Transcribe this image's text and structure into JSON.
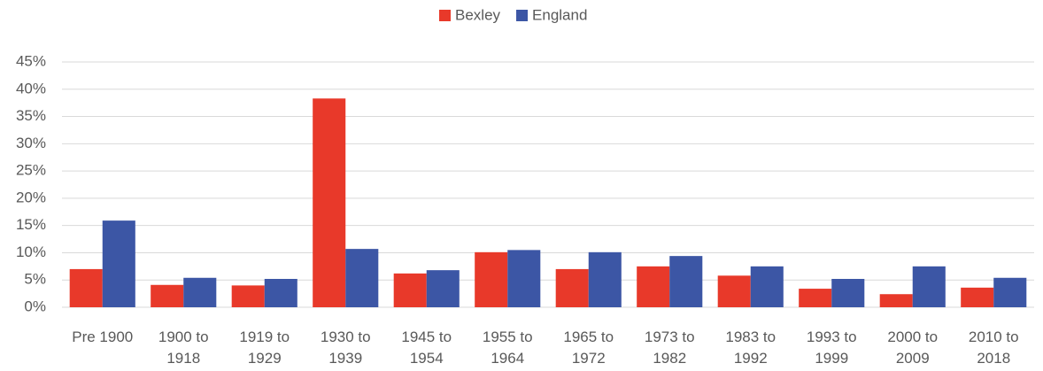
{
  "chart_data": {
    "type": "bar",
    "categories": [
      "Pre 1900",
      "1900 to 1918",
      "1919 to 1929",
      "1930 to 1939",
      "1945 to 1954",
      "1955 to 1964",
      "1965 to 1972",
      "1973 to 1982",
      "1983 to 1992",
      "1993 to 1999",
      "2000 to 2009",
      "2010 to 2018"
    ],
    "series": [
      {
        "name": "Bexley",
        "color": "#e8392a",
        "values": [
          7.0,
          4.1,
          4.0,
          38.3,
          6.2,
          10.1,
          7.0,
          7.5,
          5.8,
          3.4,
          2.4,
          3.6
        ]
      },
      {
        "name": "England",
        "color": "#3c56a5",
        "values": [
          15.9,
          5.4,
          5.2,
          10.7,
          6.8,
          10.5,
          10.1,
          9.4,
          7.5,
          5.2,
          7.5,
          5.4
        ]
      }
    ],
    "ylim": [
      0,
      45
    ],
    "yticks": [
      {
        "value": 0,
        "label": "0%"
      },
      {
        "value": 5,
        "label": "5%"
      },
      {
        "value": 10,
        "label": "10%"
      },
      {
        "value": 15,
        "label": "15%"
      },
      {
        "value": 20,
        "label": "20%"
      },
      {
        "value": 25,
        "label": "25%"
      },
      {
        "value": 30,
        "label": "30%"
      },
      {
        "value": 35,
        "label": "35%"
      },
      {
        "value": 40,
        "label": "40%"
      },
      {
        "value": 45,
        "label": "45%"
      }
    ],
    "grid": true,
    "legend": "top"
  }
}
